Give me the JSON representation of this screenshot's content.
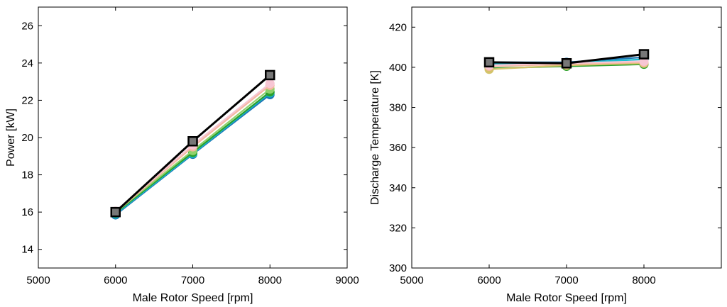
{
  "chart_data": [
    {
      "type": "line",
      "title": "",
      "xlabel": "Male Rotor Speed [rpm]",
      "ylabel": "Power [kW]",
      "xlim": [
        5000,
        9000
      ],
      "ylim": [
        13,
        27
      ],
      "x_ticks": [
        5000,
        6000,
        7000,
        8000,
        9000
      ],
      "y_ticks": [
        14,
        16,
        18,
        20,
        22,
        24,
        26
      ],
      "grid": false,
      "legend": "none",
      "x": [
        6000,
        7000,
        8000
      ],
      "series": [
        {
          "color": "#1f77b4",
          "marker": "circle",
          "values": [
            15.85,
            19.1,
            22.3
          ]
        },
        {
          "color": "#17becf",
          "marker": "circle",
          "values": [
            15.9,
            19.15,
            22.4
          ]
        },
        {
          "color": "#2ca02c",
          "marker": "circle",
          "values": [
            15.95,
            19.2,
            22.45
          ]
        },
        {
          "color": "#8fd16b",
          "marker": "circle",
          "values": [
            16.0,
            19.3,
            22.6
          ]
        },
        {
          "color": "#f5b8a0",
          "marker": "circle",
          "values": [
            16.0,
            19.5,
            22.8
          ]
        },
        {
          "color": "#f7c6d4",
          "marker": "circle",
          "values": [
            16.05,
            19.6,
            22.9
          ]
        },
        {
          "color": "#000000",
          "marker": "square",
          "fill": "#777777",
          "values": [
            16.0,
            19.8,
            23.35
          ]
        }
      ]
    },
    {
      "type": "line",
      "title": "",
      "xlabel": "Male Rotor Speed [rpm]",
      "ylabel": "Discharge Temperature [K]",
      "xlim": [
        5000,
        9000
      ],
      "ylim": [
        300,
        430
      ],
      "x_ticks": [
        5000,
        6000,
        7000,
        8000
      ],
      "y_ticks": [
        300,
        320,
        340,
        360,
        380,
        400,
        420
      ],
      "grid": false,
      "legend": "none",
      "x": [
        6000,
        7000,
        8000
      ],
      "series": [
        {
          "color": "#1f77b4",
          "marker": "circle",
          "values": [
            402.5,
            402.5,
            405
          ]
        },
        {
          "color": "#17becf",
          "marker": "circle",
          "values": [
            401.5,
            402,
            404
          ]
        },
        {
          "color": "#2ca02c",
          "marker": "circle",
          "values": [
            399.5,
            400.5,
            401.5
          ]
        },
        {
          "color": "#d4c36a",
          "marker": "circle",
          "values": [
            399,
            401,
            402
          ]
        },
        {
          "color": "#f5b8a0",
          "marker": "circle",
          "values": [
            400.5,
            401.5,
            402.5
          ]
        },
        {
          "color": "#f7c6d4",
          "marker": "circle",
          "values": [
            401,
            402,
            403
          ]
        },
        {
          "color": "#000000",
          "marker": "square",
          "fill": "#777777",
          "values": [
            402.5,
            402,
            406.5
          ]
        }
      ]
    }
  ]
}
